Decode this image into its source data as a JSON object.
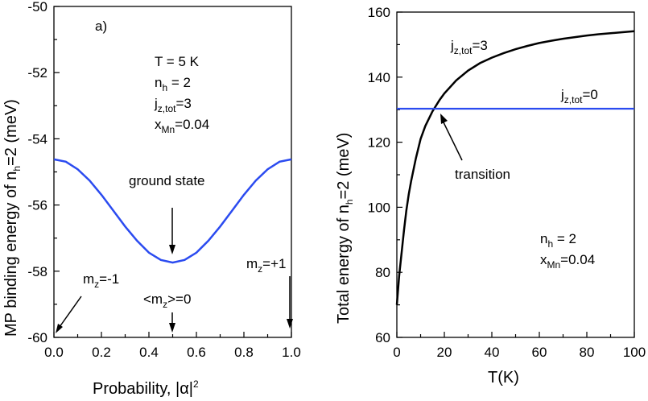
{
  "chart_data": [
    {
      "type": "line",
      "panel_label": "a)",
      "xlabel_main": "Probability, |α|",
      "xlabel_sup": "2",
      "ylabel": {
        "main": "MP binding energy of n",
        "sub": "h",
        "rest": "=2 (meV)"
      },
      "xlim": [
        0,
        1
      ],
      "ylim": [
        -60,
        -50
      ],
      "xticks": [
        "0.0",
        "0.2",
        "0.4",
        "0.6",
        "0.8",
        "1.0"
      ],
      "yticks": [
        "-60",
        "-58",
        "-56",
        "-54",
        "-52",
        "-50"
      ],
      "series": [
        {
          "name": "binding energy",
          "color": "#2b4bf0",
          "x": [
            0,
            0.05,
            0.1,
            0.15,
            0.2,
            0.25,
            0.3,
            0.35,
            0.4,
            0.45,
            0.5,
            0.55,
            0.6,
            0.65,
            0.7,
            0.75,
            0.8,
            0.85,
            0.9,
            0.95,
            1.0
          ],
          "y": [
            -54.62,
            -54.69,
            -54.92,
            -55.26,
            -55.69,
            -56.17,
            -56.65,
            -57.08,
            -57.44,
            -57.66,
            -57.74,
            -57.66,
            -57.44,
            -57.08,
            -56.65,
            -56.17,
            -55.69,
            -55.26,
            -54.92,
            -54.69,
            -54.62
          ]
        }
      ],
      "params": [
        {
          "main": "T = 5 K"
        },
        {
          "main": "n",
          "sub": "h",
          "rest": " = 2"
        },
        {
          "main": "j",
          "sub": "z,tot",
          "rest": "=3"
        },
        {
          "main": "x",
          "sub": "Mn",
          "rest": "=0.04"
        }
      ],
      "annotations": {
        "ground_state": "ground state",
        "mz_minus": {
          "main": "m",
          "sub": "z",
          "rest": "=-1"
        },
        "mz_zero": {
          "main": "<m",
          "sub": "z",
          "rest": ">=0"
        },
        "mz_plus": {
          "main": "m",
          "sub": "z",
          "rest": "=+1"
        }
      }
    },
    {
      "type": "line",
      "xlabel": "T(K)",
      "ylabel": {
        "main": "Total energy of n",
        "sub": "h",
        "rest": "=2 (meV)"
      },
      "xlim": [
        0,
        100
      ],
      "ylim": [
        60,
        160
      ],
      "xticks": [
        "0",
        "20",
        "40",
        "60",
        "80",
        "100"
      ],
      "yticks": [
        "60",
        "80",
        "100",
        "120",
        "140",
        "160"
      ],
      "series": [
        {
          "name": "jz,tot=3",
          "color": "#000000",
          "x": [
            0,
            1,
            2,
            3,
            4,
            5,
            6,
            8,
            10,
            12,
            15,
            18,
            20,
            25,
            30,
            35,
            40,
            45,
            50,
            55,
            60,
            65,
            70,
            75,
            80,
            85,
            90,
            95,
            100
          ],
          "y": [
            70,
            79,
            86,
            93,
            99,
            104,
            108,
            115,
            121,
            125,
            129.5,
            133,
            135,
            139,
            142,
            144.3,
            146,
            147.4,
            148.6,
            149.6,
            150.5,
            151.2,
            151.8,
            152.3,
            152.8,
            153.2,
            153.5,
            153.8,
            154.1
          ]
        },
        {
          "name": "jz,tot=0",
          "color": "#2b4bf0",
          "x": [
            0,
            100
          ],
          "y": [
            130.3,
            130.3
          ]
        }
      ],
      "labels": {
        "j3": {
          "main": "j",
          "sub": "z,tot",
          "rest": "=3"
        },
        "j0": {
          "main": "j",
          "sub": "z,tot",
          "rest": "=0"
        },
        "transition": "transition",
        "nh": {
          "main": "n",
          "sub": "h",
          "rest": " = 2"
        },
        "xmn": {
          "main": "x",
          "sub": "Mn",
          "rest": "=0.04"
        }
      }
    }
  ]
}
